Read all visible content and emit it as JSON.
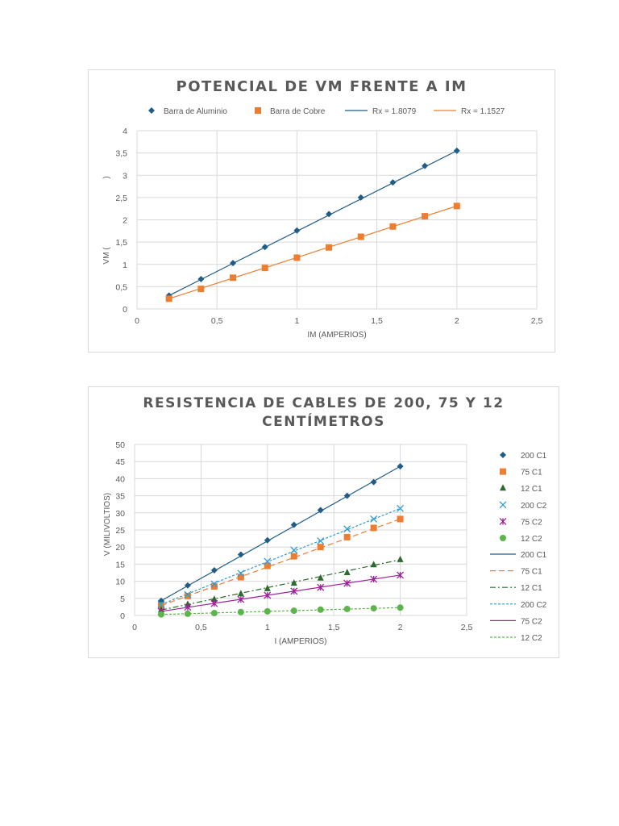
{
  "chart_data": [
    {
      "type": "scatter",
      "title": "POTENCIAL DE VM FRENTE A IM",
      "xlabel": "IM (AMPERIOS)",
      "ylabel": "VM (",
      "ylabel_fragment": ")",
      "xlim": [
        0,
        2.5
      ],
      "ylim": [
        0,
        4
      ],
      "xticks": [
        "0",
        "0,5",
        "1",
        "1,5",
        "2",
        "2,5"
      ],
      "yticks": [
        "0",
        "0,5",
        "1",
        "1,5",
        "2",
        "2,5",
        "3",
        "3,5",
        "4"
      ],
      "grid": true,
      "legend": "top",
      "series": [
        {
          "name": "Barra de Aluminio",
          "marker": "diamond",
          "color": "#1f5c86",
          "x": [
            0.2,
            0.4,
            0.6,
            0.8,
            1.0,
            1.2,
            1.4,
            1.6,
            1.8,
            2.0
          ],
          "y": [
            0.3,
            0.67,
            1.03,
            1.39,
            1.76,
            2.13,
            2.5,
            2.84,
            3.21,
            3.55
          ]
        },
        {
          "name": "Barra de Cobre",
          "marker": "square",
          "color": "#ed7d31",
          "x": [
            0.2,
            0.4,
            0.6,
            0.8,
            1.0,
            1.2,
            1.4,
            1.6,
            1.8,
            2.0
          ],
          "y": [
            0.23,
            0.45,
            0.7,
            0.92,
            1.15,
            1.38,
            1.62,
            1.85,
            2.08,
            2.31
          ]
        }
      ],
      "trendlines": [
        {
          "name": "Rx = 1.8079",
          "color": "#1f5c86",
          "dash": "solid",
          "x": [
            0.2,
            2.0
          ],
          "y": [
            0.3,
            3.55
          ]
        },
        {
          "name": "Rx = 1.1527",
          "color": "#ed7d31",
          "dash": "solid",
          "x": [
            0.2,
            2.0
          ],
          "y": [
            0.23,
            2.31
          ]
        }
      ]
    },
    {
      "type": "scatter",
      "title": "RESISTENCIA DE CABLES DE 200, 75 Y 12 CENTÍMETROS",
      "xlabel": "I (AMPERIOS)",
      "ylabel": "V (MILIVOLTIOS)",
      "xlim": [
        0,
        2.5
      ],
      "ylim": [
        0,
        50
      ],
      "xticks": [
        "0",
        "0,5",
        "1",
        "1,5",
        "2",
        "2,5"
      ],
      "yticks": [
        "0",
        "5",
        "10",
        "15",
        "20",
        "25",
        "30",
        "35",
        "40",
        "45",
        "50"
      ],
      "grid": true,
      "legend": "right",
      "series": [
        {
          "name": "200 C1",
          "marker": "diamond",
          "color": "#1f5c86",
          "x": [
            0.2,
            0.4,
            0.6,
            0.8,
            1.0,
            1.2,
            1.4,
            1.6,
            1.8,
            2.0
          ],
          "y": [
            4.3,
            8.8,
            13.2,
            17.8,
            22.0,
            26.5,
            30.8,
            35.0,
            39.0,
            43.6
          ]
        },
        {
          "name": "75 C1",
          "marker": "square",
          "color": "#ed7d31",
          "x": [
            0.2,
            0.4,
            0.6,
            0.8,
            1.0,
            1.2,
            1.4,
            1.6,
            1.8,
            2.0
          ],
          "y": [
            2.9,
            5.7,
            8.5,
            11.2,
            14.5,
            17.3,
            20.0,
            22.9,
            25.6,
            28.2
          ]
        },
        {
          "name": "12 C1",
          "marker": "triangle",
          "color": "#2d6a2d",
          "x": [
            0.2,
            0.4,
            0.6,
            0.8,
            1.0,
            1.2,
            1.4,
            1.6,
            1.8,
            2.0
          ],
          "y": [
            1.6,
            3.2,
            4.7,
            6.3,
            7.8,
            9.4,
            10.9,
            12.5,
            14.8,
            16.3
          ]
        },
        {
          "name": "200 C2",
          "marker": "x",
          "color": "#2e9bd6",
          "x": [
            0.2,
            0.4,
            0.6,
            0.8,
            1.0,
            1.2,
            1.4,
            1.6,
            1.8,
            2.0
          ],
          "y": [
            3.2,
            6.1,
            9.2,
            12.3,
            15.8,
            19.1,
            21.8,
            25.3,
            28.2,
            31.3
          ]
        },
        {
          "name": "75 C2",
          "marker": "star",
          "color": "#a0209c",
          "x": [
            0.2,
            0.4,
            0.6,
            0.8,
            1.0,
            1.2,
            1.4,
            1.6,
            1.8,
            2.0
          ],
          "y": [
            1.2,
            2.4,
            3.5,
            4.7,
            5.9,
            7.1,
            8.2,
            9.4,
            10.6,
            11.8
          ]
        },
        {
          "name": "12 C2",
          "marker": "circle",
          "color": "#5bb54a",
          "x": [
            0.2,
            0.4,
            0.6,
            0.8,
            1.0,
            1.2,
            1.4,
            1.6,
            1.8,
            2.0
          ],
          "y": [
            0.3,
            0.5,
            0.7,
            1.0,
            1.2,
            1.4,
            1.7,
            1.9,
            2.1,
            2.3
          ]
        }
      ],
      "trendlines": [
        {
          "name": "200 C1",
          "color": "#1f5c86",
          "dash": "solid",
          "x": [
            0.2,
            2.0
          ],
          "y": [
            4.3,
            43.6
          ]
        },
        {
          "name": "75 C1",
          "color": "#ed7d31",
          "dash": "long-dash",
          "x": [
            0.2,
            2.0
          ],
          "y": [
            2.9,
            28.2
          ]
        },
        {
          "name": "12 C1",
          "color": "#2d6a2d",
          "dash": "dash-dot",
          "x": [
            0.2,
            2.0
          ],
          "y": [
            1.6,
            16.3
          ]
        },
        {
          "name": "200 C2",
          "color": "#2e9bd6",
          "dash": "short-dash",
          "x": [
            0.2,
            2.0
          ],
          "y": [
            3.2,
            31.3
          ]
        },
        {
          "name": "75 C2",
          "color": "#a0209c",
          "dash": "solid",
          "x": [
            0.2,
            2.0
          ],
          "y": [
            1.2,
            11.8
          ]
        },
        {
          "name": "12 C2",
          "color": "#5bb54a",
          "dash": "short-dash",
          "x": [
            0.2,
            2.0
          ],
          "y": [
            0.3,
            2.3
          ]
        }
      ]
    }
  ]
}
